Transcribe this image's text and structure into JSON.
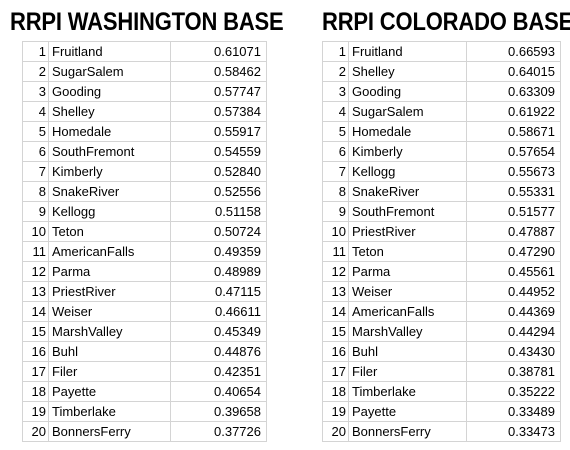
{
  "washington": {
    "title": "RRPI WASHINGTON BASE",
    "rows": [
      {
        "rank": "1",
        "team": "Fruitland",
        "value": "0.61071"
      },
      {
        "rank": "2",
        "team": "SugarSalem",
        "value": "0.58462"
      },
      {
        "rank": "3",
        "team": "Gooding",
        "value": "0.57747"
      },
      {
        "rank": "4",
        "team": "Shelley",
        "value": "0.57384"
      },
      {
        "rank": "5",
        "team": "Homedale",
        "value": "0.55917"
      },
      {
        "rank": "6",
        "team": "SouthFremont",
        "value": "0.54559"
      },
      {
        "rank": "7",
        "team": "Kimberly",
        "value": "0.52840"
      },
      {
        "rank": "8",
        "team": "SnakeRiver",
        "value": "0.52556"
      },
      {
        "rank": "9",
        "team": "Kellogg",
        "value": "0.51158"
      },
      {
        "rank": "10",
        "team": "Teton",
        "value": "0.50724"
      },
      {
        "rank": "11",
        "team": "AmericanFalls",
        "value": "0.49359"
      },
      {
        "rank": "12",
        "team": "Parma",
        "value": "0.48989"
      },
      {
        "rank": "13",
        "team": "PriestRiver",
        "value": "0.47115"
      },
      {
        "rank": "14",
        "team": "Weiser",
        "value": "0.46611"
      },
      {
        "rank": "15",
        "team": "MarshValley",
        "value": "0.45349"
      },
      {
        "rank": "16",
        "team": "Buhl",
        "value": "0.44876"
      },
      {
        "rank": "17",
        "team": "Filer",
        "value": "0.42351"
      },
      {
        "rank": "18",
        "team": "Payette",
        "value": "0.40654"
      },
      {
        "rank": "19",
        "team": "Timberlake",
        "value": "0.39658"
      },
      {
        "rank": "20",
        "team": "BonnersFerry",
        "value": "0.37726"
      }
    ]
  },
  "colorado": {
    "title": "RRPI COLORADO BASE",
    "rows": [
      {
        "rank": "1",
        "team": "Fruitland",
        "value": "0.66593"
      },
      {
        "rank": "2",
        "team": "Shelley",
        "value": "0.64015"
      },
      {
        "rank": "3",
        "team": "Gooding",
        "value": "0.63309"
      },
      {
        "rank": "4",
        "team": "SugarSalem",
        "value": "0.61922"
      },
      {
        "rank": "5",
        "team": "Homedale",
        "value": "0.58671"
      },
      {
        "rank": "6",
        "team": "Kimberly",
        "value": "0.57654"
      },
      {
        "rank": "7",
        "team": "Kellogg",
        "value": "0.55673"
      },
      {
        "rank": "8",
        "team": "SnakeRiver",
        "value": "0.55331"
      },
      {
        "rank": "9",
        "team": "SouthFremont",
        "value": "0.51577"
      },
      {
        "rank": "10",
        "team": "PriestRiver",
        "value": "0.47887"
      },
      {
        "rank": "11",
        "team": "Teton",
        "value": "0.47290"
      },
      {
        "rank": "12",
        "team": "Parma",
        "value": "0.45561"
      },
      {
        "rank": "13",
        "team": "Weiser",
        "value": "0.44952"
      },
      {
        "rank": "14",
        "team": "AmericanFalls",
        "value": "0.44369"
      },
      {
        "rank": "15",
        "team": "MarshValley",
        "value": "0.44294"
      },
      {
        "rank": "16",
        "team": "Buhl",
        "value": "0.43430"
      },
      {
        "rank": "17",
        "team": "Filer",
        "value": "0.38781"
      },
      {
        "rank": "18",
        "team": "Timberlake",
        "value": "0.35222"
      },
      {
        "rank": "19",
        "team": "Payette",
        "value": "0.33489"
      },
      {
        "rank": "20",
        "team": "BonnersFerry",
        "value": "0.33473"
      }
    ]
  },
  "colors": {
    "text": "#000000",
    "grid": "#d4d4d4",
    "background": "#ffffff"
  }
}
